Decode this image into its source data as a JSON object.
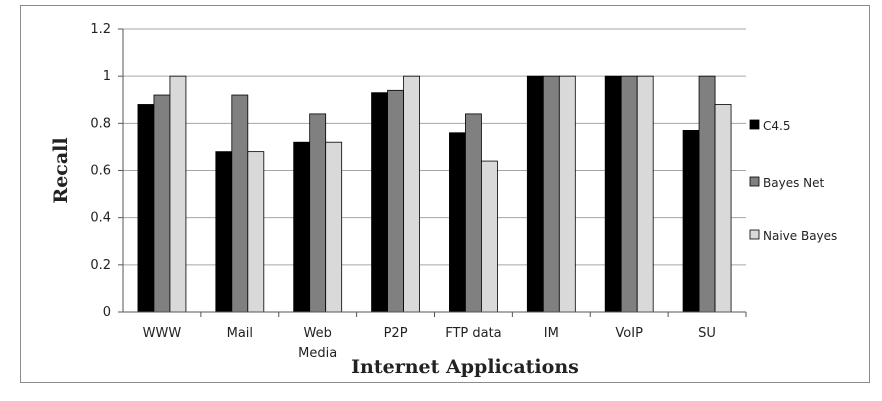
{
  "chart_data": {
    "type": "bar",
    "title": "",
    "xlabel": "Internet Applications",
    "ylabel": "Recall",
    "ylim": [
      0,
      1.2
    ],
    "yticks": [
      "0",
      "0.2",
      "0.4",
      "0.6",
      "0.8",
      "1",
      "1.2"
    ],
    "grid": "horizontal",
    "legend_position": "right",
    "categories": [
      "WWW",
      "Mail",
      "Web Media",
      "P2P",
      "FTP data",
      "IM",
      "VoIP",
      "SU"
    ],
    "series": [
      {
        "name": "C4.5",
        "color": "#000000",
        "values": [
          0.88,
          0.68,
          0.72,
          0.93,
          0.76,
          1.0,
          1.0,
          0.77
        ]
      },
      {
        "name": "Bayes Net",
        "color": "#808080",
        "values": [
          0.92,
          0.92,
          0.84,
          0.94,
          0.84,
          1.0,
          1.0,
          1.0
        ]
      },
      {
        "name": "Naive Bayes",
        "color": "#d9d9d9",
        "values": [
          1.0,
          0.68,
          0.72,
          1.0,
          0.64,
          1.0,
          1.0,
          0.88
        ]
      }
    ],
    "legend_labels": [
      "C4.5",
      "Bayes Net",
      "Naive Bayes"
    ]
  }
}
